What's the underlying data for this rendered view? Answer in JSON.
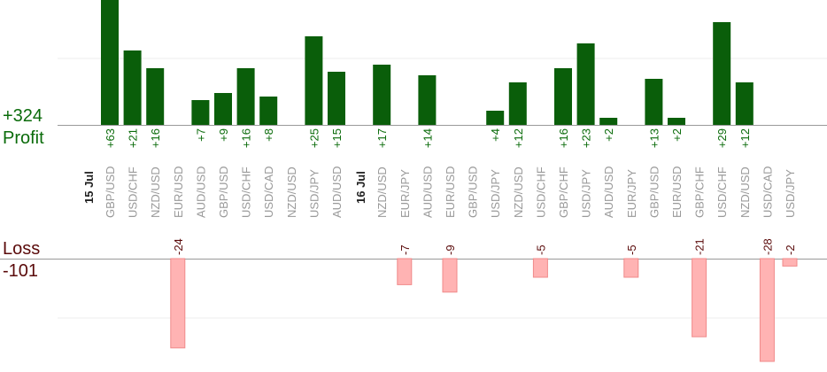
{
  "chart_data": {
    "type": "bar",
    "profit": {
      "total_label": "+324",
      "label": "Profit",
      "color": "#0a5e0a"
    },
    "loss": {
      "total_label": "-101",
      "label": "Loss",
      "color": "#ffb3b3"
    },
    "groups": [
      {
        "date": "15 Jul",
        "trades": [
          {
            "pair": "GBP/USD",
            "profit": 63
          },
          {
            "pair": "USD/CHF",
            "profit": 21
          },
          {
            "pair": "NZD/USD",
            "profit": 16
          },
          {
            "pair": "EUR/USD",
            "loss": -24
          },
          {
            "pair": "AUD/USD",
            "profit": 7
          },
          {
            "pair": "GBP/USD",
            "profit": 9
          },
          {
            "pair": "USD/CHF",
            "profit": 16
          },
          {
            "pair": "USD/CAD",
            "profit": 8
          },
          {
            "pair": "NZD/USD"
          },
          {
            "pair": "USD/JPY",
            "profit": 25
          },
          {
            "pair": "AUD/USD",
            "profit": 15
          }
        ]
      },
      {
        "date": "16 Jul",
        "trades": [
          {
            "pair": "NZD/USD",
            "profit": 17
          },
          {
            "pair": "EUR/JPY",
            "loss": -7
          },
          {
            "pair": "AUD/USD",
            "profit": 14
          },
          {
            "pair": "EUR/USD",
            "loss": -9
          },
          {
            "pair": "GBP/USD"
          },
          {
            "pair": "USD/JPY",
            "profit": 4
          },
          {
            "pair": "NZD/USD",
            "profit": 12
          },
          {
            "pair": "USD/CHF",
            "loss": -5
          },
          {
            "pair": "GBP/CHF",
            "profit": 16
          },
          {
            "pair": "USD/JPY",
            "profit": 23
          },
          {
            "pair": "AUD/USD",
            "profit": 2
          },
          {
            "pair": "EUR/JPY",
            "loss": -5
          },
          {
            "pair": "GBP/USD",
            "profit": 13
          },
          {
            "pair": "EUR/USD",
            "profit": 2
          },
          {
            "pair": "GBP/CHF",
            "loss": -21
          },
          {
            "pair": "USD/CHF",
            "profit": 29
          },
          {
            "pair": "NZD/USD",
            "profit": 12
          },
          {
            "pair": "USD/CAD",
            "loss": -28
          },
          {
            "pair": "USD/JPY",
            "loss": -2
          }
        ]
      }
    ],
    "profit_axis_visible_max": 20,
    "loss_axis_visible_max": 28,
    "grid": true
  }
}
